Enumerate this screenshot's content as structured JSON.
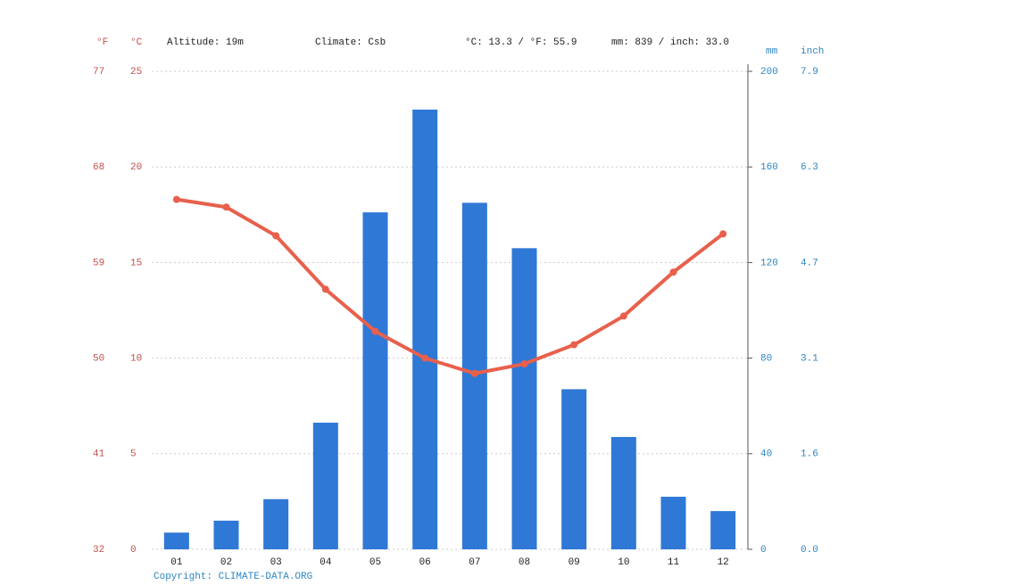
{
  "chart_data": {
    "type": "bar_line",
    "header": {
      "altitude": "Altitude: 19m",
      "climate": "Climate: Csb",
      "temp_mean": "°C: 13.3 / °F: 55.9",
      "precip_total": "mm: 839 / inch: 33.0"
    },
    "left_units": [
      "°F",
      "°C"
    ],
    "right_units": [
      "mm",
      "inch"
    ],
    "copyright": "Copyright: CLIMATE-DATA.ORG",
    "categories": [
      "01",
      "02",
      "03",
      "04",
      "05",
      "06",
      "07",
      "08",
      "09",
      "10",
      "11",
      "12"
    ],
    "bars": {
      "axis": "y2",
      "color": "#2f78d6",
      "values": [
        7,
        12,
        21,
        53,
        141,
        184,
        145,
        126,
        67,
        47,
        22,
        16
      ]
    },
    "line": {
      "axis": "y",
      "color": "#e8604c",
      "values": [
        18.3,
        17.9,
        16.4,
        13.6,
        11.4,
        10.0,
        9.2,
        9.7,
        10.7,
        12.2,
        14.5,
        16.5
      ]
    },
    "ylim": [
      0,
      25
    ],
    "yticks": [
      0,
      5,
      10,
      15,
      20,
      25
    ],
    "yticks_f": [
      {
        "value": 0,
        "label": "32"
      },
      {
        "value": 5,
        "label": "41"
      },
      {
        "value": 10,
        "label": "50"
      },
      {
        "value": 15,
        "label": "59"
      },
      {
        "value": 20,
        "label": "68"
      },
      {
        "value": 25,
        "label": "77"
      }
    ],
    "y2lim": [
      0,
      200
    ],
    "y2ticks": [
      0,
      40,
      80,
      120,
      160,
      200
    ],
    "y2ticks_inch": [
      {
        "value": 0,
        "label": "0.0"
      },
      {
        "value": 40,
        "label": "1.6"
      },
      {
        "value": 80,
        "label": "3.1"
      },
      {
        "value": 120,
        "label": "4.7"
      },
      {
        "value": 160,
        "label": "6.3"
      },
      {
        "value": 200,
        "label": "7.9"
      }
    ],
    "grid": true
  }
}
